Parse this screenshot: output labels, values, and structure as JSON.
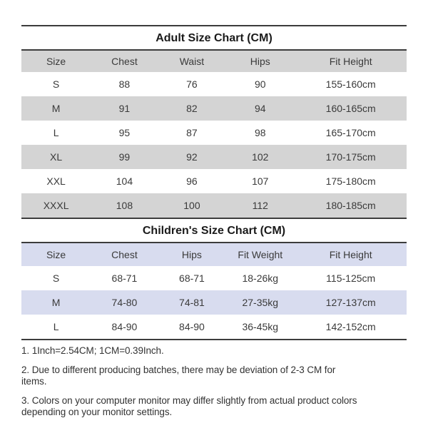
{
  "page": {
    "background_color": "#ffffff",
    "rule_color": "#3c3c3c",
    "text_color": "#3a3a3a"
  },
  "adult_chart": {
    "title": "Adult Size Chart (CM)",
    "row_shade_color": "#d4d4d4",
    "columns": [
      "Size",
      "Chest",
      "Waist",
      "Hips",
      "Fit Height"
    ],
    "rows": [
      [
        "S",
        "88",
        "76",
        "90",
        "155-160cm"
      ],
      [
        "M",
        "91",
        "82",
        "94",
        "160-165cm"
      ],
      [
        "L",
        "95",
        "87",
        "98",
        "165-170cm"
      ],
      [
        "XL",
        "99",
        "92",
        "102",
        "170-175cm"
      ],
      [
        "XXL",
        "104",
        "96",
        "107",
        "175-180cm"
      ],
      [
        "XXXL",
        "108",
        "100",
        "112",
        "180-185cm"
      ]
    ]
  },
  "children_chart": {
    "title": "Children's Size Chart (CM)",
    "row_shade_color": "#d8dcef",
    "columns": [
      "Size",
      "Chest",
      "Hips",
      "Fit Weight",
      "Fit Height"
    ],
    "rows": [
      [
        "S",
        "68-71",
        "68-71",
        "18-26kg",
        "115-125cm"
      ],
      [
        "M",
        "74-80",
        "74-81",
        "27-35kg",
        "127-137cm"
      ],
      [
        "L",
        "84-90",
        "84-90",
        "36-45kg",
        "142-152cm"
      ]
    ]
  },
  "notes": [
    {
      "lines": [
        "1. 1Inch=2.54CM; 1CM=0.39Inch."
      ]
    },
    {
      "lines": [
        "2. Due to different producing batches, there may be deviation of 2-3 CM for",
        "items."
      ]
    },
    {
      "lines": [
        "3. Colors on your computer monitor may differ slightly from actual product colors",
        "depending on your monitor settings."
      ]
    }
  ]
}
